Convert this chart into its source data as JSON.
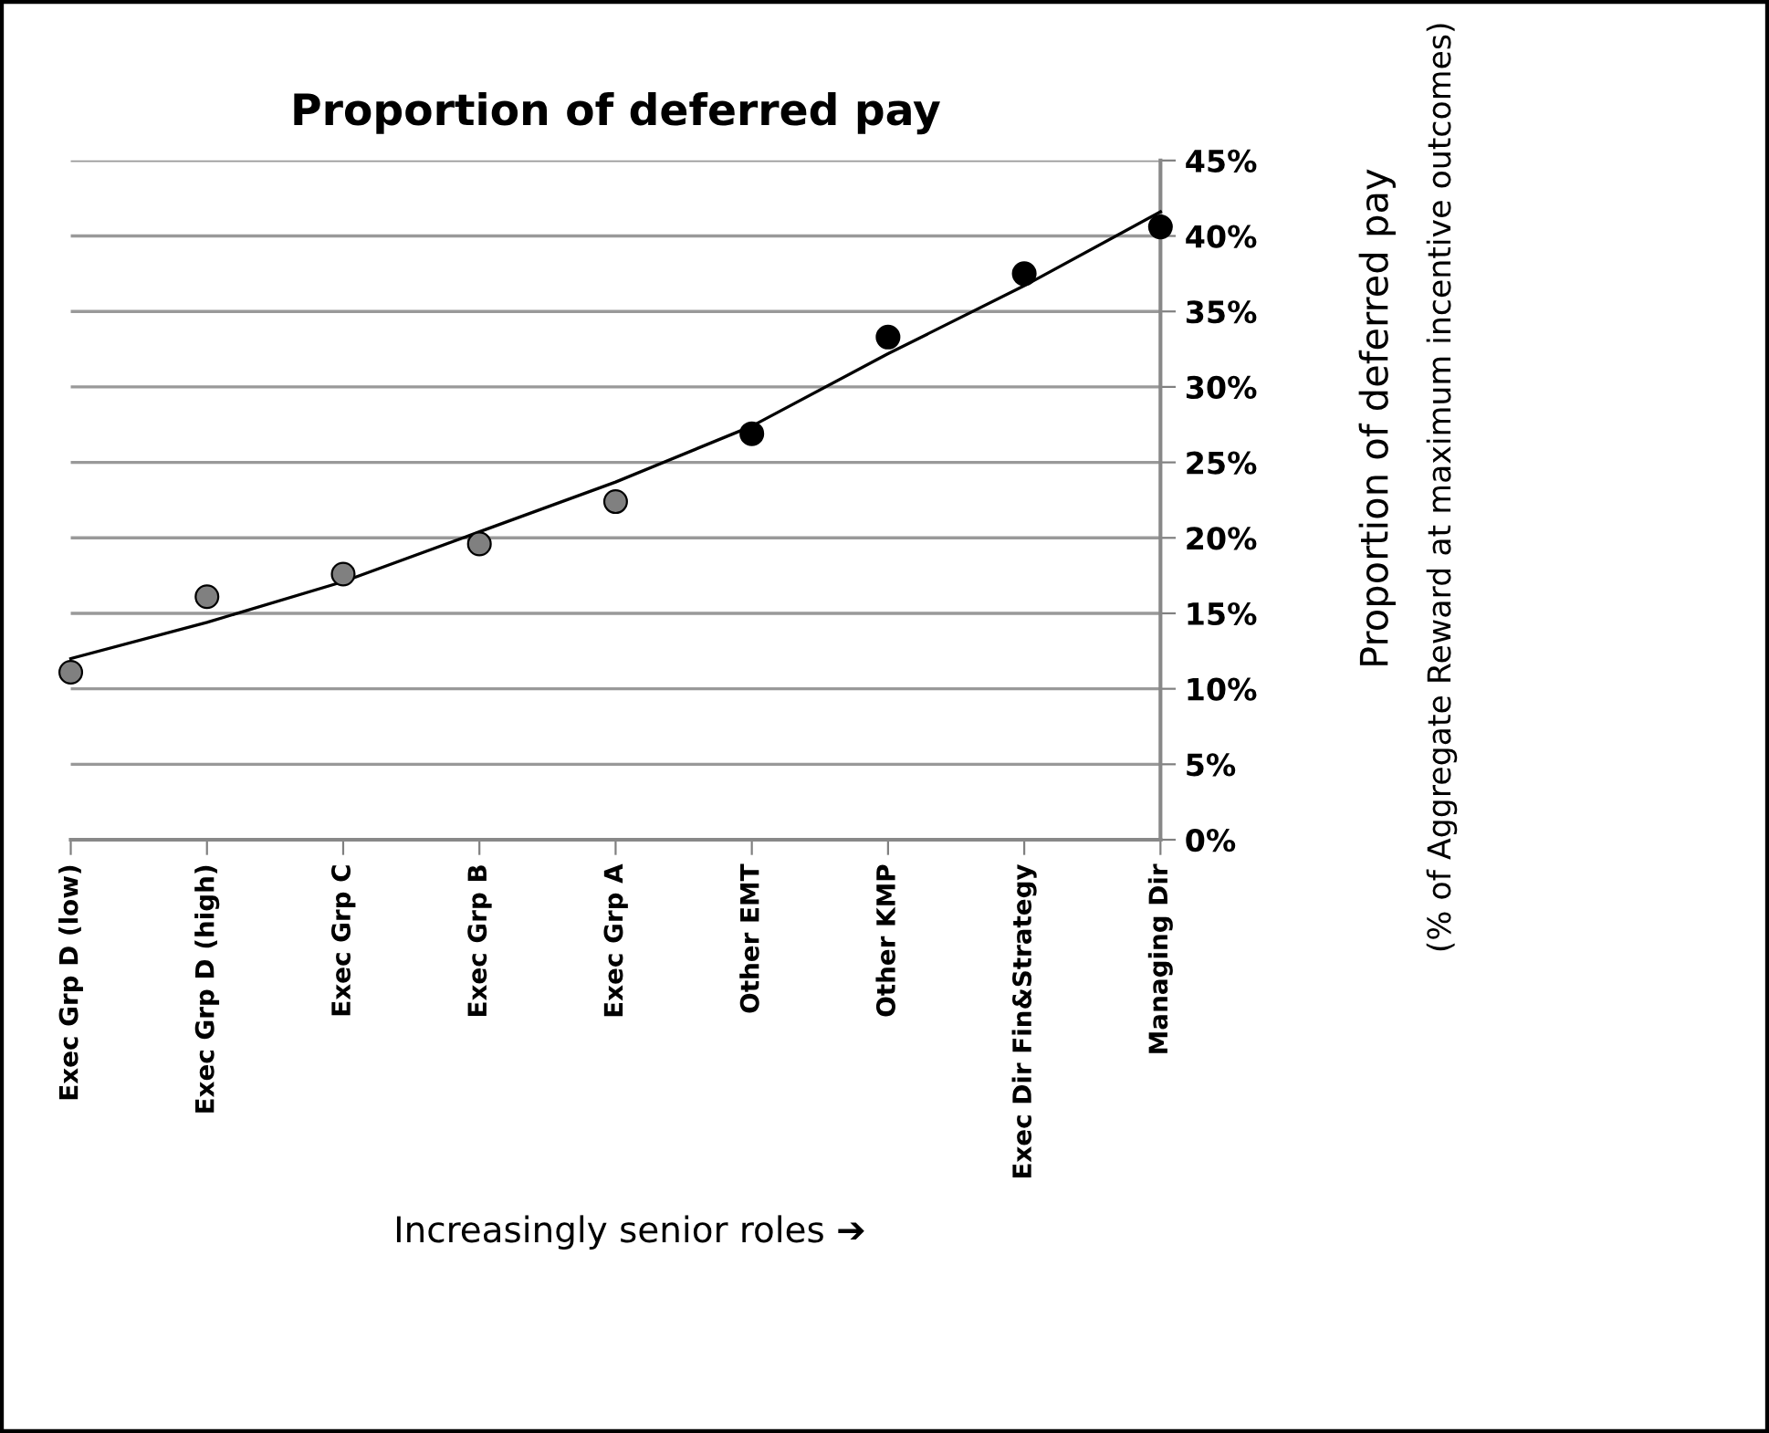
{
  "chart_data": {
    "type": "scatter",
    "title": "Proportion of deferred pay",
    "xlabel": "Increasingly senior roles ➔",
    "ylabel": "Proportion of deferred pay",
    "annotations": [
      "(% of Aggregate Reward at maximum incentive outcomes)"
    ],
    "categories": [
      "Exec Grp D (low)",
      "Exec Grp D (high)",
      "Exec Grp C",
      "Exec Grp B",
      "Exec Grp A",
      "Other EMT",
      "Other KMP",
      "Exec Dir Fin&Strategy",
      "Managing Dir"
    ],
    "series": [
      {
        "marker": "circle",
        "values": [
          11.1,
          16.1,
          17.6,
          19.6,
          22.4,
          26.9,
          33.3,
          37.5,
          40.6
        ],
        "colors": [
          "#808080",
          "#808080",
          "#808080",
          "#808080",
          "#808080",
          "#000000",
          "#000000",
          "#000000",
          "#000000"
        ]
      },
      {
        "type": "line",
        "marker": "none",
        "line_style": "solid",
        "color": "#000000",
        "values": [
          12.0,
          14.4,
          17.1,
          20.4,
          23.7,
          27.4,
          32.2,
          36.7,
          41.6
        ]
      }
    ],
    "ylim": [
      0,
      45
    ],
    "yticks": [
      {
        "value": 0,
        "label": "0%"
      },
      {
        "value": 5,
        "label": "5%"
      },
      {
        "value": 10,
        "label": "10%"
      },
      {
        "value": 15,
        "label": "15%"
      },
      {
        "value": 20,
        "label": "20%"
      },
      {
        "value": 25,
        "label": "25%"
      },
      {
        "value": 30,
        "label": "30%"
      },
      {
        "value": 35,
        "label": "35%"
      },
      {
        "value": 40,
        "label": "40%"
      },
      {
        "value": 45,
        "label": "45%"
      }
    ],
    "grid": "y",
    "legend": false
  }
}
